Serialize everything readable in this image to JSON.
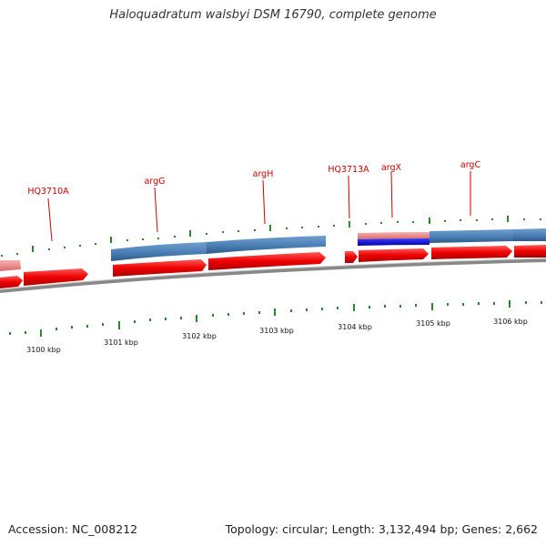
{
  "title": "Haloquadratum walsbyi DSM 16790, complete genome",
  "accession": "Accession: NC_008212",
  "summary": "Topology: circular; Length: 3,132,494 bp; Genes: 2,662",
  "genes": [
    {
      "name": "HQ3710A"
    },
    {
      "name": "argG"
    },
    {
      "name": "argH"
    },
    {
      "name": "HQ3713A"
    },
    {
      "name": "argX"
    },
    {
      "name": "argC"
    }
  ],
  "scale_labels": [
    "3100 kbp",
    "3101 kbp",
    "3102 kbp",
    "3103 kbp",
    "3104 kbp",
    "3105 kbp",
    "3106 kbp"
  ],
  "colors": {
    "forward_gene": "#ff0000",
    "reverse_gene": "#4a7fb5",
    "rna_gene": "#0000ee",
    "backbone": "#888888",
    "tick": "#2a8a2a",
    "gene_label": "#cc0000"
  }
}
